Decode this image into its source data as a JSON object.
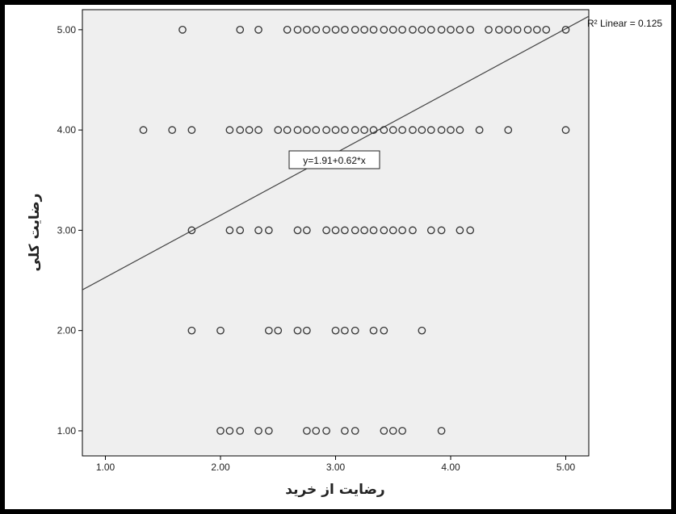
{
  "chart_data": {
    "type": "scatter",
    "xlabel": "رضایت از خرید",
    "ylabel": "رضایت کلی",
    "xlim": [
      0.8,
      5.2
    ],
    "ylim": [
      0.75,
      5.2
    ],
    "x_ticks": [
      "1.00",
      "2.00",
      "3.00",
      "4.00",
      "5.00"
    ],
    "y_ticks": [
      "1.00",
      "2.00",
      "3.00",
      "4.00",
      "5.00"
    ],
    "grid": false,
    "plot_background": "#efefef",
    "marker_color": "#333333",
    "fit_line": {
      "intercept": 1.91,
      "slope": 0.62,
      "label": "y=1.91+0.62*x"
    },
    "r2_label": "R² Linear = 0.125",
    "points": [
      [
        1.67,
        5
      ],
      [
        2.17,
        5
      ],
      [
        2.33,
        5
      ],
      [
        2.58,
        5
      ],
      [
        2.67,
        5
      ],
      [
        2.75,
        5
      ],
      [
        2.83,
        5
      ],
      [
        2.92,
        5
      ],
      [
        3.0,
        5
      ],
      [
        3.08,
        5
      ],
      [
        3.17,
        5
      ],
      [
        3.25,
        5
      ],
      [
        3.33,
        5
      ],
      [
        3.42,
        5
      ],
      [
        3.5,
        5
      ],
      [
        3.58,
        5
      ],
      [
        3.67,
        5
      ],
      [
        3.75,
        5
      ],
      [
        3.83,
        5
      ],
      [
        3.92,
        5
      ],
      [
        4.0,
        5
      ],
      [
        4.08,
        5
      ],
      [
        4.17,
        5
      ],
      [
        4.33,
        5
      ],
      [
        4.42,
        5
      ],
      [
        4.5,
        5
      ],
      [
        4.58,
        5
      ],
      [
        4.67,
        5
      ],
      [
        4.75,
        5
      ],
      [
        4.83,
        5
      ],
      [
        5.0,
        5
      ],
      [
        1.33,
        4
      ],
      [
        1.58,
        4
      ],
      [
        1.75,
        4
      ],
      [
        2.08,
        4
      ],
      [
        2.17,
        4
      ],
      [
        2.25,
        4
      ],
      [
        2.33,
        4
      ],
      [
        2.5,
        4
      ],
      [
        2.58,
        4
      ],
      [
        2.67,
        4
      ],
      [
        2.75,
        4
      ],
      [
        2.83,
        4
      ],
      [
        2.92,
        4
      ],
      [
        3.0,
        4
      ],
      [
        3.08,
        4
      ],
      [
        3.17,
        4
      ],
      [
        3.25,
        4
      ],
      [
        3.33,
        4
      ],
      [
        3.42,
        4
      ],
      [
        3.5,
        4
      ],
      [
        3.58,
        4
      ],
      [
        3.67,
        4
      ],
      [
        3.75,
        4
      ],
      [
        3.83,
        4
      ],
      [
        3.92,
        4
      ],
      [
        4.0,
        4
      ],
      [
        4.08,
        4
      ],
      [
        4.25,
        4
      ],
      [
        4.5,
        4
      ],
      [
        5.0,
        4
      ],
      [
        1.75,
        3
      ],
      [
        2.08,
        3
      ],
      [
        2.17,
        3
      ],
      [
        2.33,
        3
      ],
      [
        2.42,
        3
      ],
      [
        2.67,
        3
      ],
      [
        2.75,
        3
      ],
      [
        2.92,
        3
      ],
      [
        3.0,
        3
      ],
      [
        3.08,
        3
      ],
      [
        3.17,
        3
      ],
      [
        3.25,
        3
      ],
      [
        3.33,
        3
      ],
      [
        3.42,
        3
      ],
      [
        3.5,
        3
      ],
      [
        3.58,
        3
      ],
      [
        3.67,
        3
      ],
      [
        3.83,
        3
      ],
      [
        3.92,
        3
      ],
      [
        4.08,
        3
      ],
      [
        4.17,
        3
      ],
      [
        1.75,
        2
      ],
      [
        2.0,
        2
      ],
      [
        2.42,
        2
      ],
      [
        2.5,
        2
      ],
      [
        2.67,
        2
      ],
      [
        2.75,
        2
      ],
      [
        3.0,
        2
      ],
      [
        3.08,
        2
      ],
      [
        3.17,
        2
      ],
      [
        3.33,
        2
      ],
      [
        3.42,
        2
      ],
      [
        3.75,
        2
      ],
      [
        2.0,
        1
      ],
      [
        2.08,
        1
      ],
      [
        2.17,
        1
      ],
      [
        2.33,
        1
      ],
      [
        2.42,
        1
      ],
      [
        2.75,
        1
      ],
      [
        2.83,
        1
      ],
      [
        2.92,
        1
      ],
      [
        3.08,
        1
      ],
      [
        3.17,
        1
      ],
      [
        3.42,
        1
      ],
      [
        3.5,
        1
      ],
      [
        3.58,
        1
      ],
      [
        3.92,
        1
      ]
    ]
  }
}
